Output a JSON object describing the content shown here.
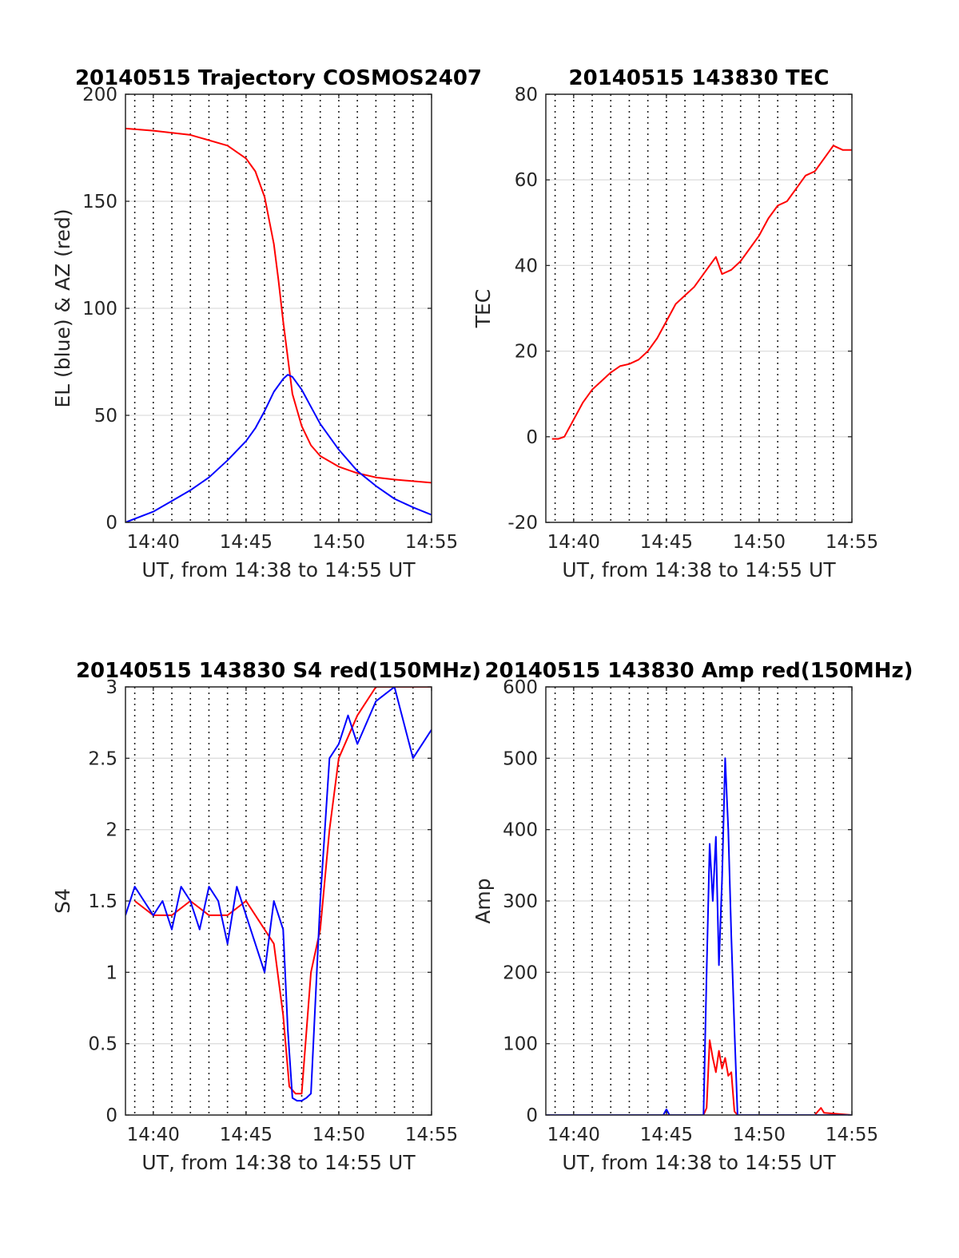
{
  "chart_data": [
    {
      "type": "line",
      "title": "20140515 Trajectory COSMOS2407",
      "xlabel": "UT, from 14:38 to 14:55 UT",
      "ylabel": "EL (blue) & AZ (red)",
      "xlim": [
        "14:38:30",
        "14:55:00"
      ],
      "ylim": [
        0,
        200
      ],
      "x_ticks": [
        "14:40",
        "14:45",
        "14:50",
        "14:55"
      ],
      "y_ticks": [
        "0",
        "50",
        "100",
        "150",
        "200"
      ],
      "y_tick_values": [
        0,
        50,
        100,
        150,
        200
      ],
      "grid": "vertical dotted every minute, horizontal at y ticks",
      "series": [
        {
          "color": "#ff0000",
          "x": [
            "14:38:30",
            "14:40:00",
            "14:42:00",
            "14:44:00",
            "14:45:00",
            "14:45:30",
            "14:46:00",
            "14:46:30",
            "14:46:45",
            "14:47:00",
            "14:47:15",
            "14:47:30",
            "14:48:00",
            "14:48:30",
            "14:49:00",
            "14:50:00",
            "14:51:00",
            "14:52:00",
            "14:53:00",
            "14:55:00"
          ],
          "values": [
            184,
            183,
            181,
            176,
            170,
            164,
            152,
            130,
            113,
            94,
            77,
            60,
            45,
            36,
            31,
            26,
            23,
            21,
            20,
            18.5
          ]
        },
        {
          "color": "#0000ff",
          "x": [
            "14:38:30",
            "14:40:00",
            "14:41:00",
            "14:42:00",
            "14:43:00",
            "14:44:00",
            "14:45:00",
            "14:45:30",
            "14:46:00",
            "14:46:30",
            "14:47:00",
            "14:47:15",
            "14:47:30",
            "14:48:00",
            "14:48:30",
            "14:49:00",
            "14:50:00",
            "14:51:00",
            "14:52:00",
            "14:53:00",
            "14:54:00",
            "14:55:00"
          ],
          "values": [
            0,
            5,
            10,
            15,
            21,
            29,
            38,
            44,
            52,
            61,
            67,
            69,
            68,
            62,
            54,
            46,
            34,
            24,
            17,
            11,
            7,
            3.5
          ]
        }
      ]
    },
    {
      "type": "line",
      "title": "20140515 143830 TEC",
      "xlabel": "UT, from 14:38 to 14:55 UT",
      "ylabel": "TEC",
      "xlim": [
        "14:38:30",
        "14:55:00"
      ],
      "ylim": [
        -20,
        80
      ],
      "x_ticks": [
        "14:40",
        "14:45",
        "14:50",
        "14:55"
      ],
      "y_ticks": [
        "-20",
        "0",
        "20",
        "40",
        "60",
        "80"
      ],
      "y_tick_values": [
        -20,
        0,
        20,
        40,
        60,
        80
      ],
      "grid": "vertical dotted every minute, horizontal at y ticks",
      "series": [
        {
          "color": "#ff0000",
          "x": [
            "14:38:50",
            "14:39:10",
            "14:39:30",
            "14:40:00",
            "14:40:30",
            "14:41:00",
            "14:41:30",
            "14:42:00",
            "14:42:30",
            "14:43:00",
            "14:43:30",
            "14:44:00",
            "14:44:30",
            "14:45:00",
            "14:45:30",
            "14:46:00",
            "14:46:30",
            "14:47:00",
            "14:47:30",
            "14:47:40",
            "14:48:00",
            "14:48:30",
            "14:49:00",
            "14:49:30",
            "14:50:00",
            "14:50:30",
            "14:51:00",
            "14:51:30",
            "14:52:00",
            "14:52:30",
            "14:53:00",
            "14:53:30",
            "14:54:00",
            "14:54:30",
            "14:55:00"
          ],
          "values": [
            -0.5,
            -0.5,
            0,
            4,
            8,
            11,
            13,
            15,
            16.5,
            17,
            18,
            20,
            23,
            27,
            31,
            33,
            35,
            38,
            41,
            42,
            38,
            39,
            41,
            44,
            47,
            51,
            54,
            55,
            58,
            61,
            62,
            65,
            68,
            67,
            67
          ]
        }
      ]
    },
    {
      "type": "line",
      "title": "20140515 143830 S4 red(150MHz)",
      "xlabel": "UT, from 14:38 to 14:55 UT",
      "ylabel": "S4",
      "xlim": [
        "14:38:30",
        "14:55:00"
      ],
      "ylim": [
        0,
        3
      ],
      "x_ticks": [
        "14:40",
        "14:45",
        "14:50",
        "14:55"
      ],
      "y_ticks": [
        "0",
        "0.5",
        "1",
        "1.5",
        "2",
        "2.5",
        "3"
      ],
      "y_tick_values": [
        0,
        0.5,
        1,
        1.5,
        2,
        2.5,
        3
      ],
      "grid": "vertical dotted every minute, horizontal at y ticks",
      "series": [
        {
          "color": "#ff0000",
          "x": [
            "14:39:00",
            "14:40:00",
            "14:41:00",
            "14:42:00",
            "14:43:00",
            "14:44:00",
            "14:45:00",
            "14:46:00",
            "14:46:30",
            "14:47:00",
            "14:47:20",
            "14:47:40",
            "14:48:00",
            "14:48:30",
            "14:49:00",
            "14:49:30",
            "14:50:00",
            "14:51:00",
            "14:52:00",
            "14:53:00",
            "14:54:00",
            "14:55:00"
          ],
          "values": [
            1.5,
            1.4,
            1.4,
            1.5,
            1.4,
            1.4,
            1.5,
            1.3,
            1.2,
            0.7,
            0.2,
            0.15,
            0.15,
            1.0,
            1.3,
            2.0,
            2.5,
            2.8,
            3.0,
            3.0,
            3.0,
            3.0
          ]
        },
        {
          "color": "#0000ff",
          "x": [
            "14:38:30",
            "14:39:00",
            "14:39:30",
            "14:40:00",
            "14:40:30",
            "14:41:00",
            "14:41:30",
            "14:42:00",
            "14:42:30",
            "14:43:00",
            "14:43:30",
            "14:44:00",
            "14:44:30",
            "14:45:00",
            "14:45:30",
            "14:46:00",
            "14:46:30",
            "14:47:00",
            "14:47:15",
            "14:47:30",
            "14:47:45",
            "14:48:00",
            "14:48:15",
            "14:48:30",
            "14:49:00",
            "14:49:30",
            "14:50:00",
            "14:50:30",
            "14:51:00",
            "14:52:00",
            "14:53:00",
            "14:54:00",
            "14:55:00"
          ],
          "values": [
            1.4,
            1.6,
            1.5,
            1.4,
            1.5,
            1.3,
            1.6,
            1.5,
            1.3,
            1.6,
            1.5,
            1.2,
            1.6,
            1.4,
            1.2,
            1.0,
            1.5,
            1.3,
            0.6,
            0.12,
            0.1,
            0.1,
            0.12,
            0.15,
            1.5,
            2.5,
            2.6,
            2.8,
            2.6,
            2.9,
            3.0,
            2.5,
            2.7
          ]
        }
      ]
    },
    {
      "type": "line",
      "title": "20140515 143830 Amp red(150MHz)",
      "xlabel": "UT, from 14:38 to 14:55 UT",
      "ylabel": "Amp",
      "xlim": [
        "14:38:30",
        "14:55:00"
      ],
      "ylim": [
        0,
        600
      ],
      "x_ticks": [
        "14:40",
        "14:45",
        "14:50",
        "14:55"
      ],
      "y_ticks": [
        "0",
        "100",
        "200",
        "300",
        "400",
        "500",
        "600"
      ],
      "y_tick_values": [
        0,
        100,
        200,
        300,
        400,
        500,
        600
      ],
      "grid": "vertical dotted every minute, horizontal at y ticks",
      "series": [
        {
          "color": "#ff0000",
          "x": [
            "14:38:30",
            "14:47:00",
            "14:47:10",
            "14:47:20",
            "14:47:30",
            "14:47:40",
            "14:47:50",
            "14:48:00",
            "14:48:10",
            "14:48:20",
            "14:48:30",
            "14:48:40",
            "14:48:50",
            "14:53:00",
            "14:53:10",
            "14:53:20",
            "14:53:30",
            "14:55:00"
          ],
          "values": [
            0,
            0,
            10,
            105,
            80,
            60,
            90,
            65,
            80,
            55,
            60,
            5,
            0,
            0,
            5,
            10,
            3,
            0
          ]
        },
        {
          "color": "#0000ff",
          "x": [
            "14:38:30",
            "14:44:50",
            "14:45:00",
            "14:45:10",
            "14:47:00",
            "14:47:10",
            "14:47:20",
            "14:47:30",
            "14:47:40",
            "14:47:50",
            "14:48:00",
            "14:48:10",
            "14:48:20",
            "14:48:30",
            "14:48:40",
            "14:48:50",
            "14:55:00"
          ],
          "values": [
            0,
            0,
            8,
            0,
            0,
            200,
            380,
            300,
            390,
            210,
            330,
            500,
            400,
            250,
            120,
            0,
            0
          ]
        }
      ]
    }
  ]
}
